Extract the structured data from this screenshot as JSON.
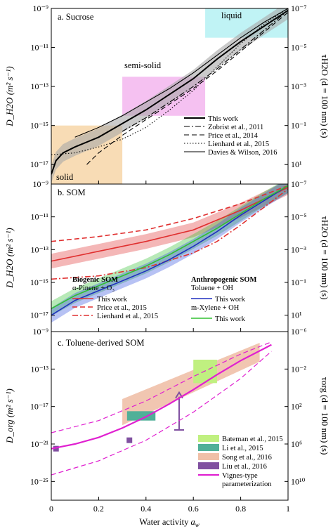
{
  "chart_data": [
    {
      "type": "line",
      "title": "a. Sucrose",
      "ylabel": "D_H2O (m² s⁻¹)",
      "ylabel_right": "τH2O (d = 100 nm) (s)",
      "xlim": [
        0,
        1
      ],
      "ylim_log10": [
        -18,
        -9
      ],
      "y_ticks": [
        "10⁻⁹",
        "10⁻¹¹",
        "10⁻¹³",
        "10⁻¹⁵",
        "10⁻¹⁷"
      ],
      "y_ticks_right": [
        "10⁻⁷",
        "10⁻⁵",
        "10⁻³",
        "10⁻¹",
        "10¹"
      ],
      "regions": [
        {
          "label": "solid",
          "x": [
            0.0,
            0.3
          ],
          "y_log10": [
            -18,
            -15
          ],
          "color": "#f7d6a8"
        },
        {
          "label": "semi-solid",
          "x": [
            0.3,
            0.65
          ],
          "y_log10": [
            -14.5,
            -12.5
          ],
          "color": "#f3b6ee"
        },
        {
          "label": "liquid",
          "x": [
            0.65,
            1.0
          ],
          "y_log10": [
            -10.5,
            -9.0
          ],
          "color": "#b5f1f3"
        }
      ],
      "series": [
        {
          "name": "This work",
          "style": "solid-bold",
          "x": [
            0.0,
            0.02,
            0.05,
            0.1,
            0.2,
            0.3,
            0.4,
            0.5,
            0.6,
            0.7,
            0.8,
            0.9,
            1.0
          ],
          "y_log10": [
            -17.5,
            -16.8,
            -16.4,
            -16.1,
            -15.6,
            -14.9,
            -14.2,
            -13.4,
            -12.6,
            -11.6,
            -10.7,
            -9.9,
            -9.1
          ]
        },
        {
          "name": "Zobrist et al., 2011",
          "style": "dashdot",
          "x": [
            0.3,
            0.4,
            0.5,
            0.6,
            0.7,
            0.8,
            0.9,
            1.0
          ],
          "y_log10": [
            -15.3,
            -14.6,
            -13.8,
            -13.0,
            -12.1,
            -11.1,
            -10.1,
            -9.1
          ]
        },
        {
          "name": "Price et al., 2014",
          "style": "dashed",
          "x": [
            0.15,
            0.2,
            0.3,
            0.4,
            0.5,
            0.6,
            0.7,
            0.8,
            0.9,
            1.0
          ],
          "y_log10": [
            -17.0,
            -16.4,
            -15.5,
            -14.7,
            -13.9,
            -13.1,
            -12.2,
            -11.2,
            -10.2,
            -9.2
          ]
        },
        {
          "name": "Lienhard et al., 2015",
          "style": "dotted",
          "x": [
            0.0,
            0.1,
            0.2,
            0.3,
            0.4,
            0.5,
            0.6,
            0.7,
            0.8,
            0.9,
            1.0
          ],
          "y_log10": [
            -16.5,
            -16.4,
            -16.1,
            -15.7,
            -15.1,
            -14.2,
            -13.2,
            -12.0,
            -10.8,
            -9.8,
            -9.0
          ]
        },
        {
          "name": "Davies & Wilson, 2016",
          "style": "solid-thin",
          "x": [
            0.1,
            0.2,
            0.3,
            0.4,
            0.5,
            0.6,
            0.7,
            0.8,
            0.9,
            1.0
          ],
          "y_log10": [
            -15.6,
            -15.1,
            -14.5,
            -13.8,
            -13.1,
            -12.3,
            -11.4,
            -10.5,
            -9.7,
            -9.0
          ]
        }
      ],
      "legend": "bottom-right",
      "legend_entries": [
        "This work",
        "Zobrist et al., 2011",
        "Price et al., 2014",
        "Lienhard et al., 2015",
        "Davies & Wilson, 2016"
      ],
      "region_labels": [
        "solid",
        "semi-solid",
        "liquid"
      ]
    },
    {
      "type": "line",
      "title": "b. SOM",
      "ylabel": "D_H2O (m² s⁻¹)",
      "ylabel_right": "τH2O (d = 100 nm) (s)",
      "xlim": [
        0,
        1
      ],
      "ylim_log10": [
        -18,
        -9
      ],
      "y_ticks": [
        "10⁻⁹",
        "10⁻¹¹",
        "10⁻¹³",
        "10⁻¹⁵",
        "10⁻¹⁷"
      ],
      "y_ticks_right": [
        "10⁻⁷",
        "10⁻⁵",
        "10⁻³",
        "10⁻¹",
        "10¹"
      ],
      "series": [
        {
          "name": "This work (α-Pinene + O₃)",
          "color": "#e03030",
          "style": "solid",
          "x": [
            0.0,
            0.2,
            0.4,
            0.6,
            0.8,
            1.0
          ],
          "y_log10": [
            -13.7,
            -13.1,
            -12.5,
            -11.8,
            -10.6,
            -9.2
          ]
        },
        {
          "name": "Price et al., 2015",
          "color": "#e03030",
          "style": "dashed",
          "x": [
            0.0,
            0.2,
            0.4,
            0.6,
            0.8,
            1.0
          ],
          "y_log10": [
            -12.5,
            -12.2,
            -11.8,
            -11.1,
            -10.2,
            -9.1
          ]
        },
        {
          "name": "Lienhard et al., 2015",
          "color": "#e03030",
          "style": "dashdot",
          "x": [
            0.0,
            0.2,
            0.4,
            0.6,
            0.7,
            0.8,
            0.9,
            1.0
          ],
          "y_log10": [
            -14.8,
            -14.6,
            -14.1,
            -13.2,
            -12.5,
            -11.5,
            -10.4,
            -9.3
          ]
        },
        {
          "name": "This work (Toluene + OH)",
          "color": "#2030c0",
          "style": "solid",
          "x": [
            0.0,
            0.1,
            0.2,
            0.3,
            0.4,
            0.5,
            0.6,
            0.7,
            0.8,
            0.9,
            1.0
          ],
          "y_log10": [
            -17.0,
            -16.1,
            -15.5,
            -14.9,
            -14.3,
            -13.6,
            -12.8,
            -11.9,
            -10.9,
            -10.0,
            -9.1
          ]
        },
        {
          "name": "This work (m-Xylene + OH)",
          "color": "#30c030",
          "style": "solid",
          "x": [
            0.0,
            0.1,
            0.2,
            0.3,
            0.4,
            0.5,
            0.6,
            0.7,
            0.8,
            0.9,
            1.0
          ],
          "y_log10": [
            -16.6,
            -15.8,
            -15.2,
            -14.6,
            -14.0,
            -13.3,
            -12.5,
            -11.7,
            -10.8,
            -9.9,
            -9.1
          ]
        }
      ],
      "legend": "bottom",
      "legend_groups": [
        {
          "title": "Biogenic SOM",
          "subtitle": "α-Pinene + O₃",
          "entries": [
            "This work",
            "Price et al., 2015",
            "Lienhard et al., 2015"
          ]
        },
        {
          "title": "Anthropogenic SOM",
          "subtitle": "Toluene + OH",
          "entries": [
            "This work",
            "m-Xylene + OH",
            "This work"
          ]
        }
      ]
    },
    {
      "type": "line",
      "title": "c. Toluene-derived SOM",
      "ylabel": "D_org (m² s⁻¹)",
      "ylabel_right": "τorg (d = 100 nm) (s)",
      "xlabel": "Water activity a_w",
      "xlim": [
        0,
        1
      ],
      "ylim_log10": [
        -27,
        -9
      ],
      "x_ticks": [
        "0",
        "0.2",
        "0.4",
        "0.6",
        "0.8",
        "1"
      ],
      "y_ticks": [
        "10⁻⁹",
        "10⁻¹³",
        "10⁻¹⁷",
        "10⁻²¹",
        "10⁻²⁵"
      ],
      "y_ticks_right": [
        "10⁻⁶",
        "10⁻²",
        "10²",
        "10⁶",
        "10¹⁰"
      ],
      "series": [
        {
          "name": "Vignes-type parameterization",
          "color": "#e020d0",
          "style": "solid",
          "x": [
            0.0,
            0.1,
            0.2,
            0.3,
            0.4,
            0.5,
            0.6,
            0.7,
            0.8,
            0.9,
            0.93
          ],
          "y_log10": [
            -21.5,
            -21.0,
            -20.3,
            -19.3,
            -18.1,
            -16.7,
            -15.2,
            -13.6,
            -12.1,
            -10.8,
            -10.4
          ]
        },
        {
          "name": "upper bound",
          "color": "#e020d0",
          "style": "dashed",
          "x": [
            0.0,
            0.2,
            0.4,
            0.6,
            0.8,
            0.93
          ],
          "y_log10": [
            -19.8,
            -18.5,
            -16.4,
            -13.8,
            -11.4,
            -10.1
          ]
        },
        {
          "name": "lower bound",
          "color": "#e020d0",
          "style": "dashed",
          "x": [
            0.0,
            0.2,
            0.4,
            0.6,
            0.8,
            0.93
          ],
          "y_log10": [
            -24.3,
            -22.8,
            -20.6,
            -17.6,
            -14.0,
            -11.1
          ]
        }
      ],
      "boxes": [
        {
          "name": "Bateman et al., 2015",
          "color": "#c0f080",
          "x": [
            0.6,
            0.7
          ],
          "y_log10": [
            -14.5,
            -12.0
          ]
        },
        {
          "name": "Li et al., 2015",
          "color": "#50b098",
          "x": [
            0.32,
            0.44
          ],
          "y_log10": [
            -18.5,
            -17.5
          ]
        },
        {
          "name": "Song et al., 2016",
          "color": "#f0c0a8",
          "x": [
            0.3,
            0.88
          ],
          "y_log10": [
            -19,
            -11
          ]
        },
        {
          "name": "Liu et al., 2016",
          "color": "#8050a0",
          "points": [
            [
              0.02,
              -21.5
            ],
            [
              0.33,
              -20.6
            ]
          ],
          "arrow": {
            "x": 0.54,
            "y_log10": [
              -19.5,
              -15.5
            ]
          }
        }
      ],
      "legend": "bottom-right",
      "legend_entries": [
        "Bateman et al., 2015",
        "Li et al., 2015",
        "Song et al., 2016",
        "Liu et al., 2016",
        "Vignes-type parameterization"
      ]
    }
  ],
  "text": {
    "xlabel": "Water activity",
    "xlabel_sym": "a",
    "xlabel_sub": "w"
  }
}
